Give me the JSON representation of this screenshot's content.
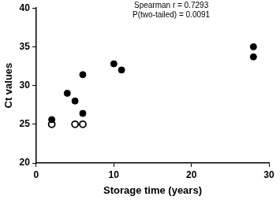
{
  "chart_data": {
    "type": "scatter",
    "x_label": "Storage time (years)",
    "y_label": "Ct values",
    "annotations": [
      "Spearman r = 0.7293",
      "P(two-tailed) = 0.0091"
    ],
    "series": [
      {
        "color": "#000000",
        "marker": "circle",
        "x": [
          2,
          4,
          5,
          6,
          6,
          10,
          11,
          28,
          28
        ],
        "values": [
          25.6,
          29,
          28,
          31.4,
          26.4,
          32.8,
          32,
          35,
          33.7
        ]
      },
      {
        "color": "#000000",
        "marker": "circle_open",
        "x": [
          2,
          5,
          6
        ],
        "values": [
          25,
          25,
          25
        ]
      }
    ],
    "xlim": [
      0,
      30
    ],
    "xticks": [
      0,
      10,
      20,
      30
    ],
    "ylim": [
      20,
      40
    ],
    "yticks": [
      20,
      25,
      30,
      35,
      40
    ],
    "grid": false
  }
}
